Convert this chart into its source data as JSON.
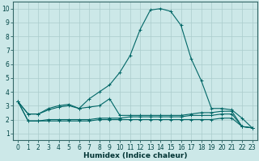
{
  "xlabel": "Humidex (Indice chaleur)",
  "bg_color": "#cce8e8",
  "grid_color": "#aacccc",
  "line_color": "#006666",
  "series": [
    [
      3.3,
      2.4,
      2.4,
      2.8,
      3.0,
      3.1,
      2.8,
      3.5,
      4.0,
      4.5,
      5.4,
      6.6,
      8.5,
      9.9,
      10.0,
      9.8,
      8.8,
      6.4,
      4.8,
      2.8,
      2.8,
      2.7,
      2.1,
      1.4
    ],
    [
      3.3,
      2.4,
      2.4,
      2.7,
      2.9,
      3.0,
      2.8,
      2.9,
      3.0,
      3.5,
      2.3,
      2.3,
      2.3,
      2.3,
      2.3,
      2.3,
      2.3,
      2.4,
      2.5,
      2.5,
      2.6,
      2.6,
      1.5,
      1.4
    ],
    [
      3.3,
      1.9,
      1.9,
      2.0,
      2.0,
      2.0,
      2.0,
      2.0,
      2.1,
      2.1,
      2.1,
      2.2,
      2.2,
      2.2,
      2.2,
      2.2,
      2.2,
      2.3,
      2.3,
      2.3,
      2.4,
      2.4,
      1.5,
      1.4
    ],
    [
      3.3,
      1.9,
      1.9,
      1.9,
      1.9,
      1.9,
      1.9,
      1.9,
      2.0,
      2.0,
      2.0,
      2.0,
      2.0,
      2.0,
      2.0,
      2.0,
      2.0,
      2.0,
      2.0,
      2.0,
      2.1,
      2.1,
      1.5,
      1.4
    ]
  ],
  "x": [
    0,
    1,
    2,
    3,
    4,
    5,
    6,
    7,
    8,
    9,
    10,
    11,
    12,
    13,
    14,
    15,
    16,
    17,
    18,
    19,
    20,
    21,
    22,
    23
  ],
  "xtick_labels": [
    "0",
    "1",
    "2",
    "3",
    "4",
    "5",
    "6",
    "7",
    "8",
    "9",
    "10",
    "11",
    "12",
    "13",
    "14",
    "15",
    "16",
    "17",
    "18",
    "19",
    "20",
    "21",
    "22",
    "23"
  ],
  "ytick_labels": [
    "1",
    "2",
    "3",
    "4",
    "5",
    "6",
    "7",
    "8",
    "9",
    "10"
  ],
  "marker": "+",
  "marker_size": 3,
  "linewidth": 0.8,
  "label_fontsize": 6.5,
  "tick_fontsize": 5.5
}
